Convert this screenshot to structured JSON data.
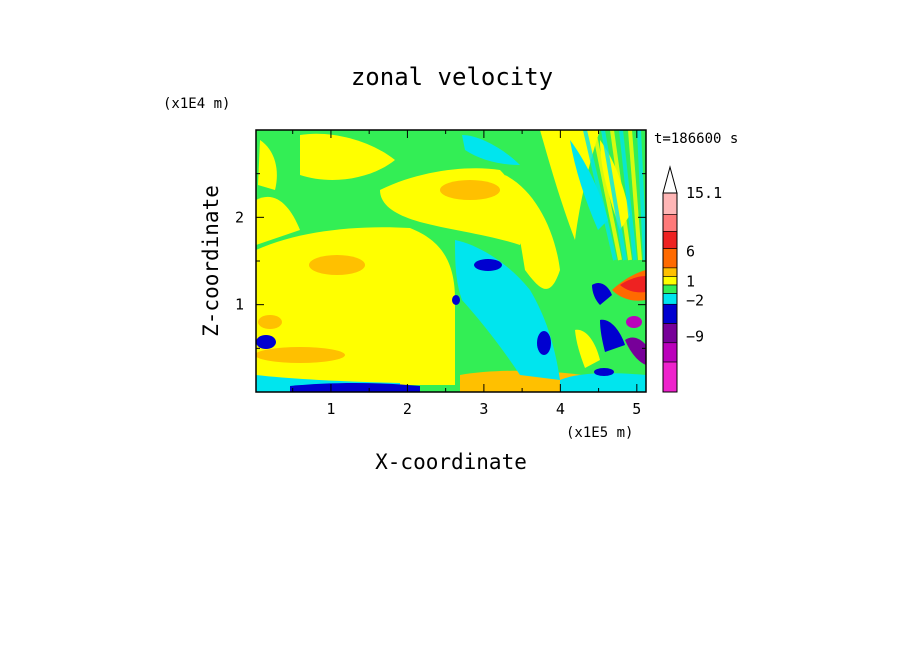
{
  "chart_data": {
    "type": "heatmap",
    "title": "zonal velocity",
    "xlabel": "X-coordinate",
    "ylabel": "Z-coordinate",
    "x_unit": "(x1E5 m)",
    "y_unit": "(x1E4 m)",
    "time_stamp": "t=186600 s",
    "xlim": [
      0.02,
      5.12
    ],
    "ylim": [
      0,
      3.0
    ],
    "x_ticks": [
      "1",
      "2",
      "3",
      "4",
      "5"
    ],
    "y_ticks": [
      "1",
      "2"
    ],
    "colorbar": {
      "labels": [
        "15.1",
        "6",
        "1",
        "−2",
        "−9"
      ],
      "colors": [
        "#ffb6b6",
        "#ff7a7a",
        "#ee2222",
        "#ff6a00",
        "#ffc000",
        "#ffff00",
        "#33ee55",
        "#00e5ee",
        "#0000d0",
        "#770099",
        "#bb00bb",
        "#ee22cc"
      ]
    },
    "field": {
      "description_levels": "colors index into colorbar, low=pink/negative, high=red/positive",
      "background_level": "#33ee55",
      "regions": [
        {
          "color": "#ffff00",
          "note": "broad positive lower-left/middle"
        },
        {
          "color": "#ffc000",
          "note": "orange pockets"
        },
        {
          "color": "#00e5ee",
          "note": "weak negative top/middle"
        },
        {
          "color": "#0000d0",
          "note": "negative cores"
        },
        {
          "color": "#ee2222",
          "note": "strong positive right edge"
        },
        {
          "color": "#770099",
          "note": "strong negative right edge"
        }
      ]
    }
  }
}
